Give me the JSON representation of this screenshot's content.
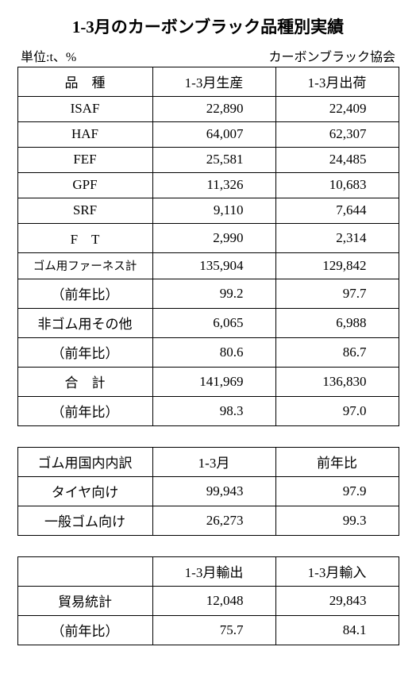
{
  "title": "1-3月のカーボンブラック品種別実績",
  "subheader": {
    "left": "単位:t、%",
    "right": "カーボンブラック協会"
  },
  "table1": {
    "head": [
      "品　種",
      "1-3月生産",
      "1-3月出荷"
    ],
    "rows": [
      {
        "label": "ISAF",
        "c1": "22,890",
        "c2": "22,409"
      },
      {
        "label": "HAF",
        "c1": "64,007",
        "c2": "62,307"
      },
      {
        "label": "FEF",
        "c1": "25,581",
        "c2": "24,485"
      },
      {
        "label": "GPF",
        "c1": "11,326",
        "c2": "10,683"
      },
      {
        "label": "SRF",
        "c1": "9,110",
        "c2": "7,644"
      },
      {
        "label": "F　T",
        "c1": "2,990",
        "c2": "2,314"
      },
      {
        "label": "ゴム用ファーネス計",
        "c1": "135,904",
        "c2": "129,842",
        "small": true
      },
      {
        "label": "（前年比）",
        "c1": "99.2",
        "c2": "97.7"
      },
      {
        "label": "非ゴム用その他",
        "c1": "6,065",
        "c2": "6,988"
      },
      {
        "label": "（前年比）",
        "c1": "80.6",
        "c2": "86.7"
      },
      {
        "label": "合　計",
        "c1": "141,969",
        "c2": "136,830"
      },
      {
        "label": "（前年比）",
        "c1": "98.3",
        "c2": "97.0"
      }
    ]
  },
  "table2": {
    "head": [
      "ゴム用国内内訳",
      "1-3月",
      "前年比"
    ],
    "rows": [
      {
        "label": "タイヤ向け",
        "c1": "99,943",
        "c2": "97.9"
      },
      {
        "label": "一般ゴム向け",
        "c1": "26,273",
        "c2": "99.3"
      }
    ]
  },
  "table3": {
    "head": [
      "",
      "1-3月輸出",
      "1-3月輸入"
    ],
    "rows": [
      {
        "label": "貿易統計",
        "c1": "12,048",
        "c2": "29,843"
      },
      {
        "label": "（前年比）",
        "c1": "75.7",
        "c2": "84.1"
      }
    ]
  }
}
